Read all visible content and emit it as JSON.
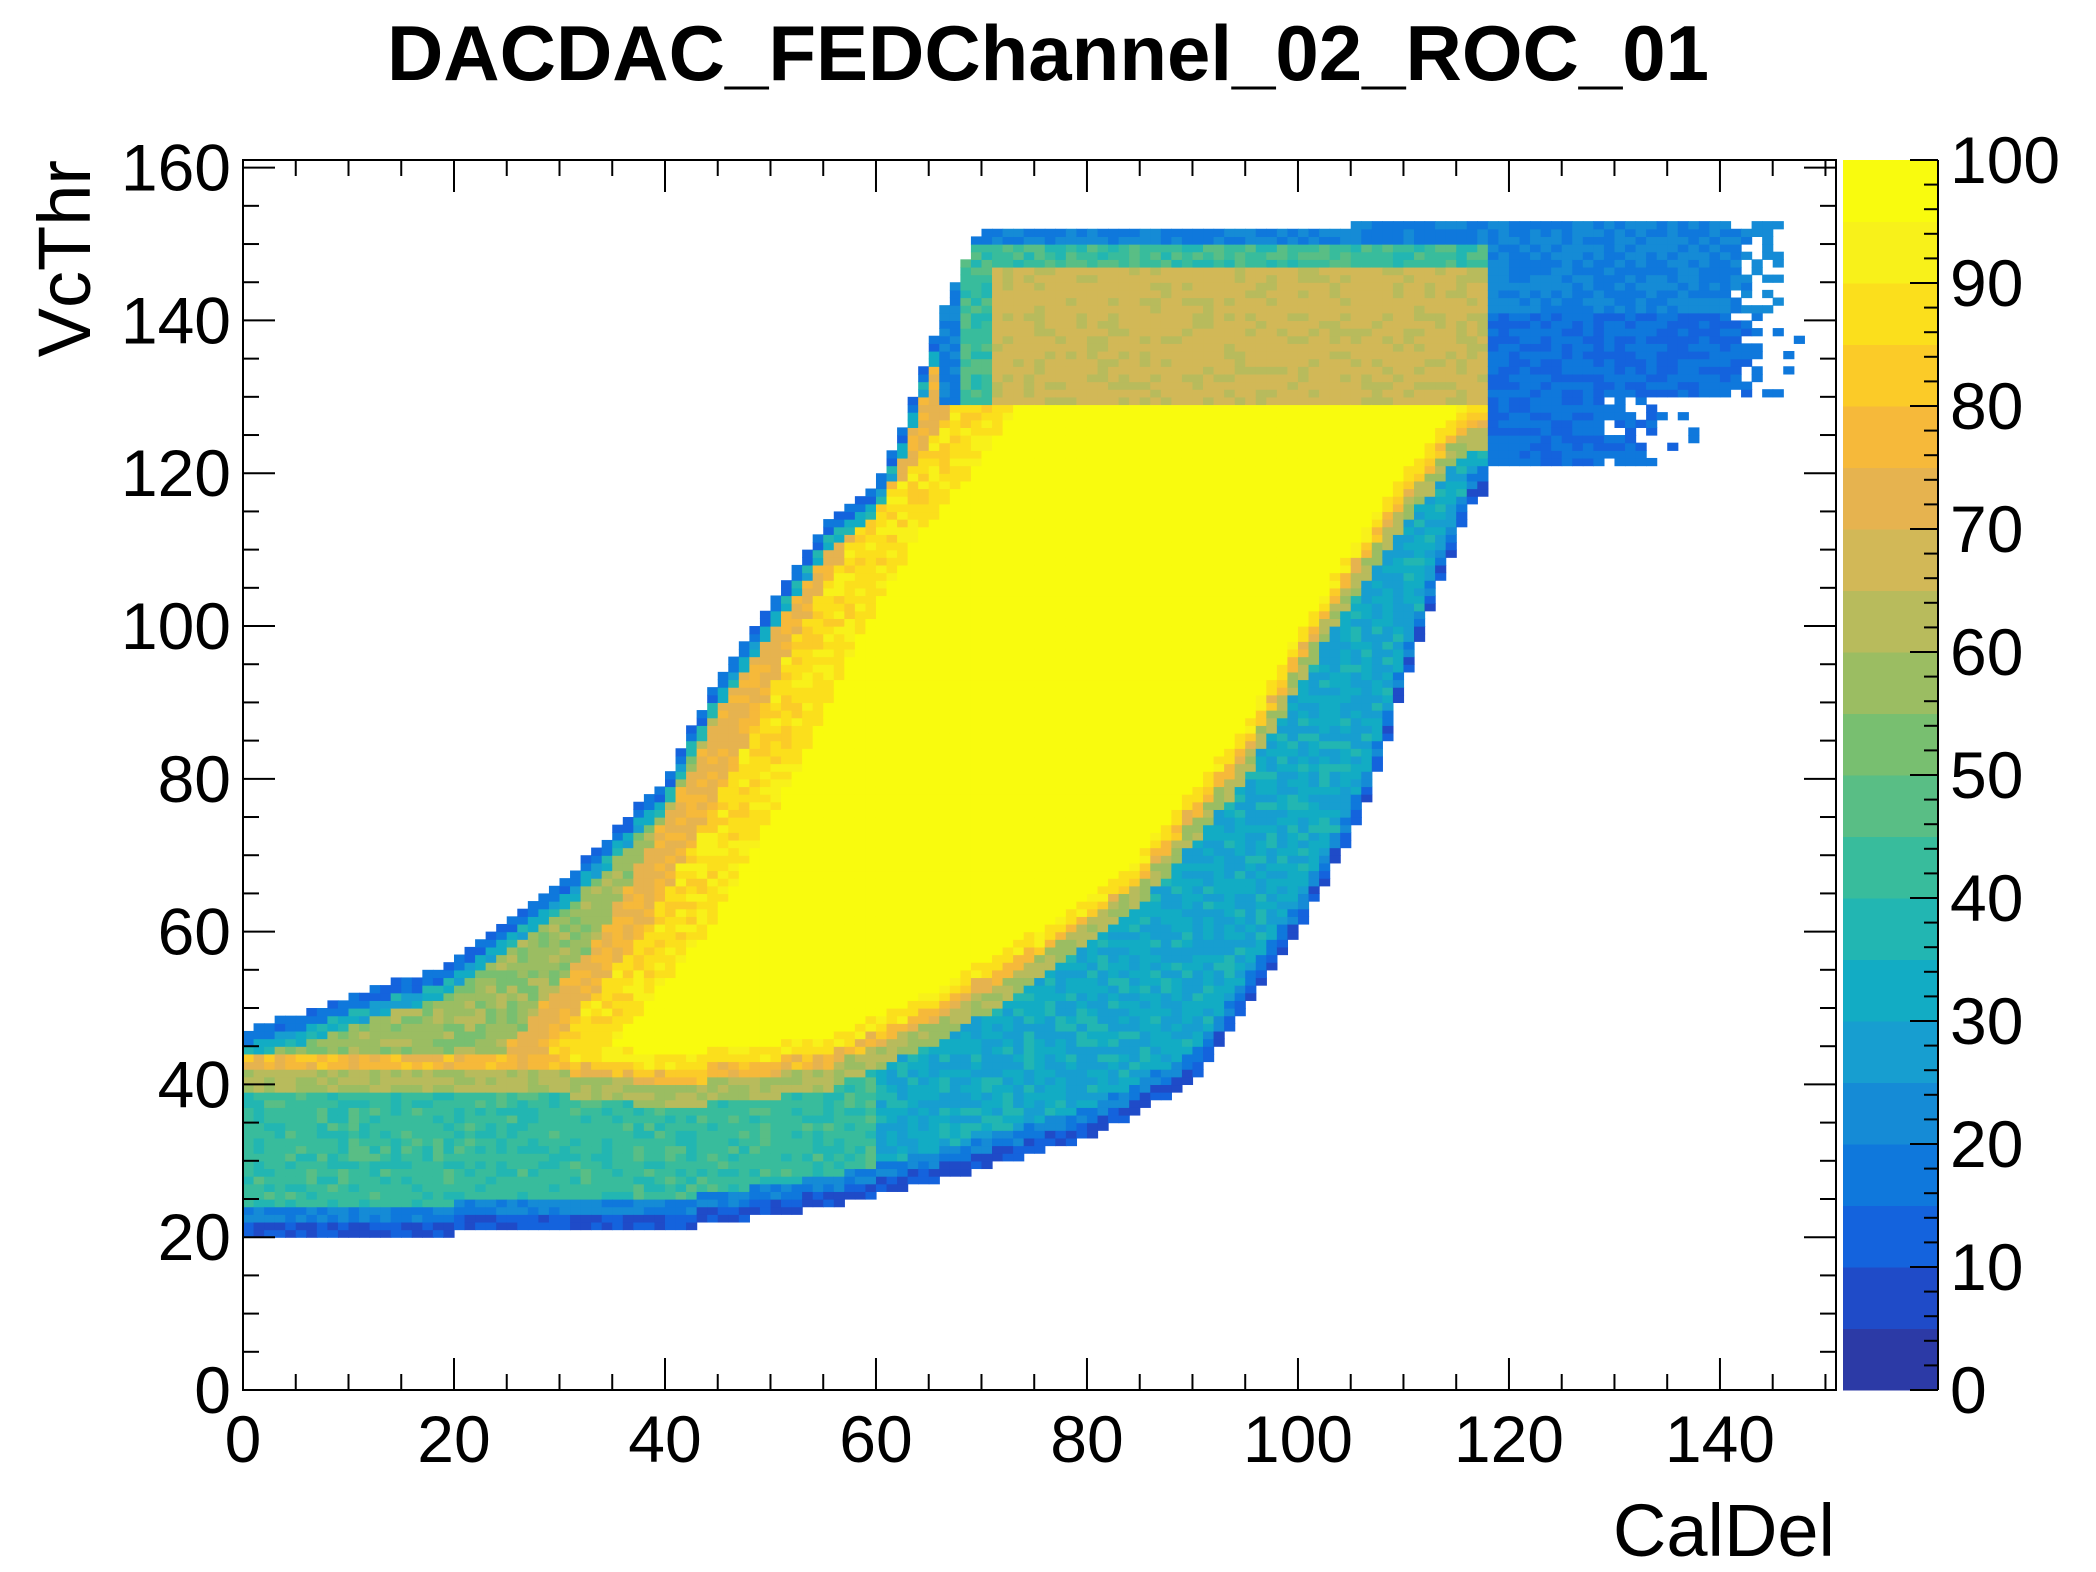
{
  "chart_data": {
    "type": "heatmap",
    "title": "DACDAC_FEDChannel_02_ROC_01",
    "xlabel": "CalDel",
    "ylabel": "VcThr",
    "xlim": [
      0,
      151
    ],
    "ylim": [
      0,
      161
    ],
    "xticks": [
      "0",
      "20",
      "40",
      "60",
      "80",
      "100",
      "120",
      "140"
    ],
    "yticks": [
      "0",
      "20",
      "40",
      "60",
      "80",
      "100",
      "120",
      "140",
      "160"
    ],
    "zlim": [
      0,
      100
    ],
    "zticks": [
      "0",
      "10",
      "20",
      "30",
      "40",
      "50",
      "60",
      "70",
      "80",
      "90",
      "100"
    ],
    "palette": "ROOT kBird",
    "palette_colors": [
      "#2c3aa6",
      "#1f4bc8",
      "#1463dd",
      "#0f78dc",
      "#158bd6",
      "#179ed0",
      "#12acc4",
      "#22b6b2",
      "#38bc9c",
      "#59be85",
      "#78bf70",
      "#9bbd62",
      "#b8bb5c",
      "#d2b857",
      "#e6b34f",
      "#f6b93a",
      "#fbcb28",
      "#fbdf1c",
      "#f8f11a",
      "#f9fb0e"
    ],
    "description_regions": [
      {
        "z_level": 100,
        "CalDel_range": [
          30,
          118
        ],
        "VcThr_range": [
          40,
          130
        ]
      },
      {
        "z_level": 65,
        "CalDel_range": [
          70,
          120
        ],
        "VcThr_range": [
          128,
          148
        ]
      },
      {
        "z_level": 40,
        "CalDel_range": [
          0,
          90
        ],
        "VcThr_range": [
          22,
          45
        ]
      }
    ]
  }
}
